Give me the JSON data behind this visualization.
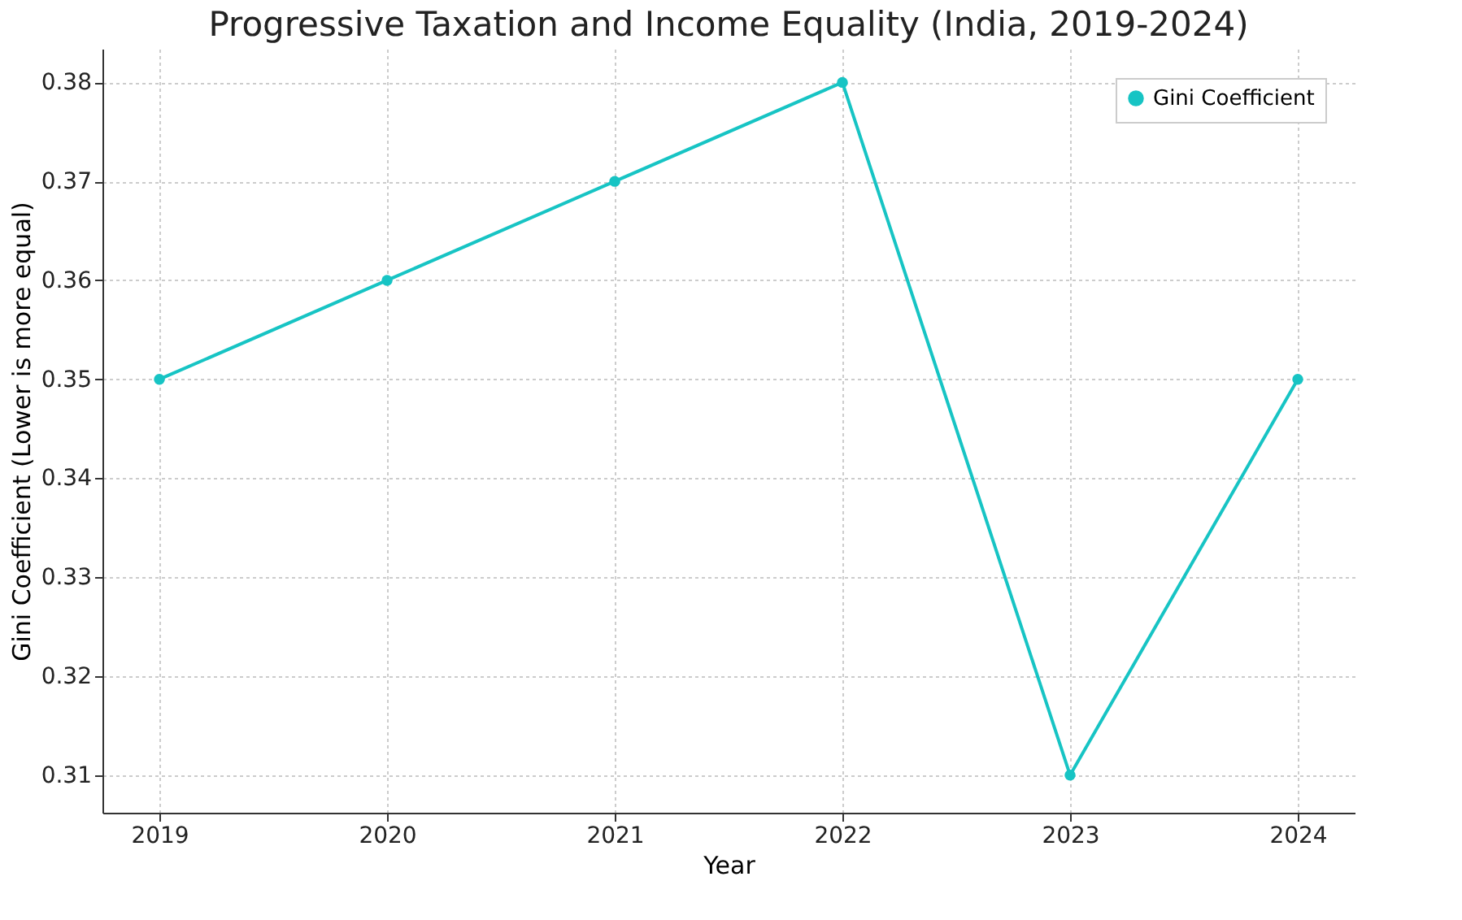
{
  "chart_data": {
    "type": "line",
    "title": "Progressive Taxation and Income Equality (India, 2019-2024)",
    "xlabel": "Year",
    "ylabel": "Gini Coefficient (Lower is more equal)",
    "x": [
      2019,
      2020,
      2021,
      2022,
      2023,
      2024
    ],
    "series": [
      {
        "name": "Gini Coefficient",
        "color": "#17c4c4",
        "values": [
          0.35,
          0.36,
          0.37,
          0.38,
          0.31,
          0.35
        ]
      }
    ],
    "xlim": [
      2018.75,
      2024.25
    ],
    "xticks": [
      2019,
      2020,
      2021,
      2022,
      2023,
      2024
    ],
    "ylim": [
      0.3062,
      0.3834
    ],
    "yticks": [
      0.31,
      0.32,
      0.33,
      0.34,
      0.35,
      0.36,
      0.37,
      0.38
    ],
    "grid": true,
    "legend": "top right",
    "marker": "circle",
    "line_style": "solid"
  }
}
